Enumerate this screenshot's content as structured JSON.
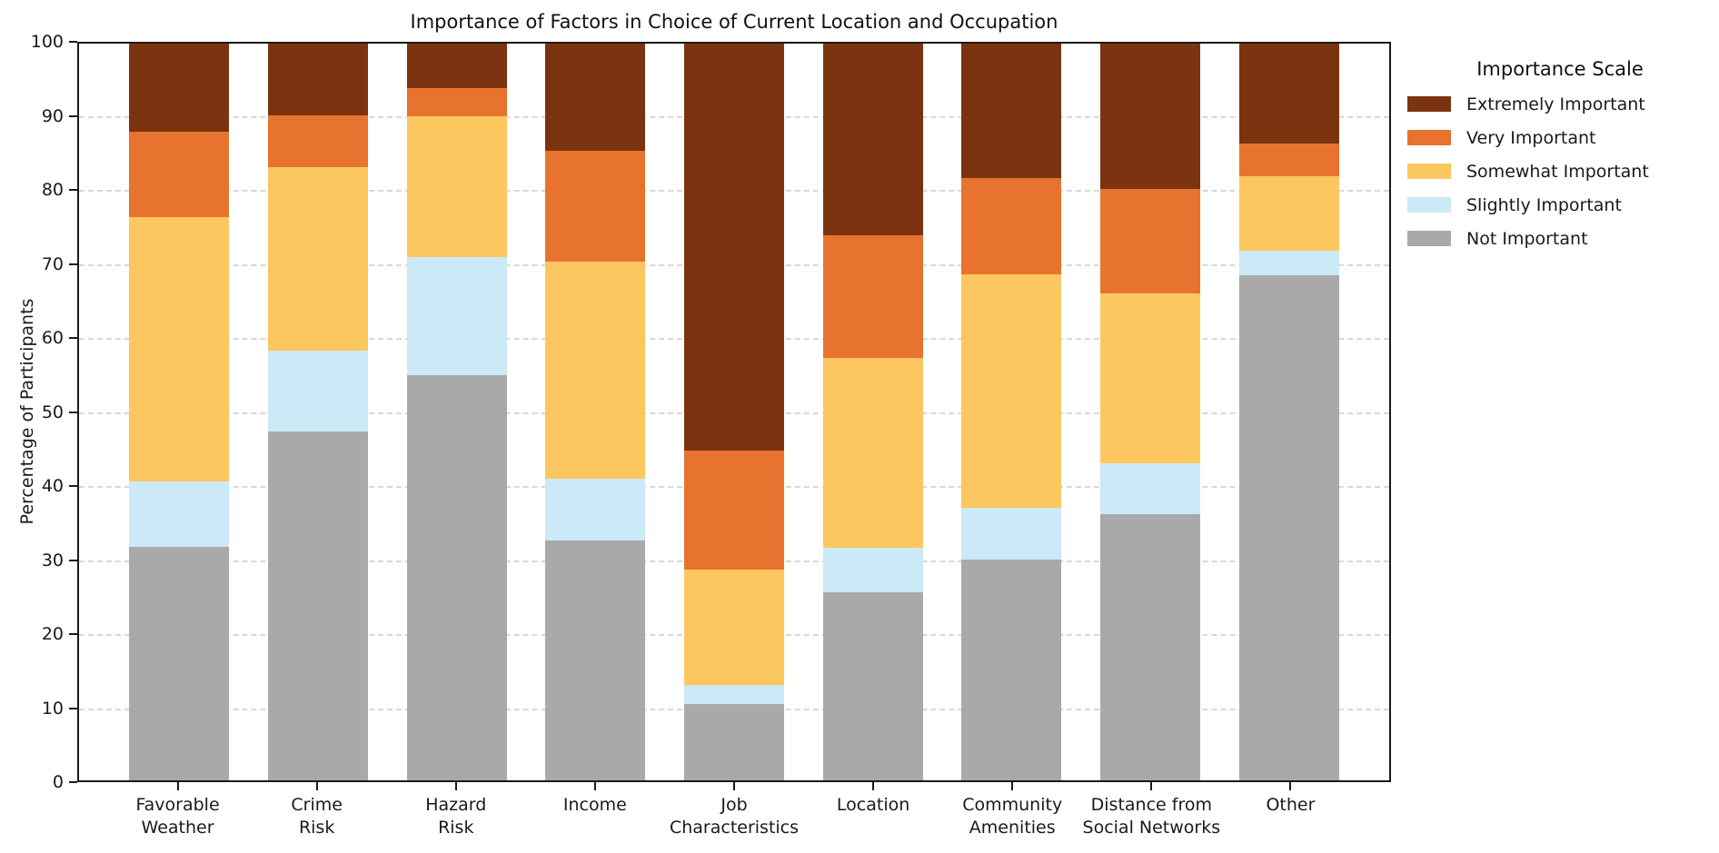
{
  "figure": {
    "title": "Importance of Factors in Choice of Current Location and Occupation",
    "ylabel": "Percentage of Participants"
  },
  "legend": {
    "title": "Importance Scale"
  },
  "chart_data": {
    "type": "bar",
    "stacked": true,
    "title": "Importance of Factors in Choice of Current Location and Occupation",
    "xlabel": "",
    "ylabel": "Percentage of Participants",
    "ylim": [
      0,
      100
    ],
    "yticks": [
      0,
      10,
      20,
      30,
      40,
      50,
      60,
      70,
      80,
      90,
      100
    ],
    "grid": "horizontal-dashed",
    "legend_title": "Importance Scale",
    "legend_position": "right-outside",
    "categories": [
      "Favorable\nWeather",
      "Crime\nRisk",
      "Hazard\nRisk",
      "Income",
      "Job\nCharacteristics",
      "Location",
      "Community\nAmenities",
      "Distance from\nSocial Networks",
      "Other"
    ],
    "series": [
      {
        "name": "Not Important",
        "color": "#A9A9A9",
        "values": [
          31.7,
          47.3,
          55.0,
          32.6,
          10.3,
          25.5,
          30.0,
          36.1,
          68.6
        ]
      },
      {
        "name": "Slightly Important",
        "color": "#CBE9F7",
        "values": [
          8.9,
          11.0,
          16.0,
          8.3,
          2.6,
          6.1,
          7.0,
          6.9,
          3.3
        ]
      },
      {
        "name": "Somewhat Important",
        "color": "#FDC760",
        "values": [
          35.9,
          24.9,
          19.1,
          29.5,
          15.7,
          25.7,
          31.7,
          23.1,
          10.1
        ]
      },
      {
        "name": "Very Important",
        "color": "#E8732E",
        "values": [
          11.5,
          7.0,
          3.8,
          15.0,
          16.2,
          16.7,
          13.1,
          14.2,
          4.4
        ]
      },
      {
        "name": "Extremely Important",
        "color": "#7C3310",
        "values": [
          12.0,
          9.8,
          6.1,
          14.6,
          55.2,
          26.0,
          18.2,
          19.7,
          13.6
        ]
      }
    ]
  }
}
